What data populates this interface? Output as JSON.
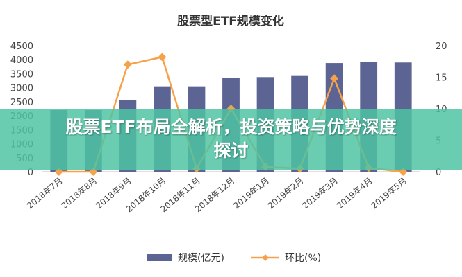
{
  "banner": {
    "line1": "股票ETF布局全解析，投资策略与优势深度",
    "line2": "探讨"
  },
  "chart_data": {
    "type": "bar",
    "title": "股票型ETF规模变化",
    "categories": [
      "2018年7月",
      "2018年8月",
      "2018年9月",
      "2018年10月",
      "2018年11月",
      "2018年12月",
      "2019年1月",
      "2019年2月",
      "2019年3月",
      "2019年4月",
      "2019年5月"
    ],
    "series": [
      {
        "name": "规模(亿元)",
        "type": "bar",
        "axis": "left",
        "color": "#5b6493",
        "values": [
          2200,
          2200,
          2550,
          3050,
          3050,
          3350,
          3380,
          3420,
          3880,
          3920,
          3900
        ]
      },
      {
        "name": "环比(%)",
        "type": "line",
        "axis": "right",
        "color": "#f5a24b",
        "values": [
          0,
          0,
          17,
          18.2,
          0.5,
          10,
          0.8,
          0.5,
          14.8,
          0.6,
          0
        ]
      }
    ],
    "left_axis": {
      "min": 0,
      "max": 4500,
      "step": 500,
      "ticks": [
        "0",
        "500",
        "1000",
        "1500",
        "2000",
        "2500",
        "3000",
        "3500",
        "4000",
        "4500"
      ]
    },
    "right_axis": {
      "min": 0,
      "max": 20,
      "step": 5,
      "ticks": [
        "0",
        "5",
        "10",
        "15",
        "20"
      ]
    },
    "grid": false,
    "legend": "bottom"
  }
}
